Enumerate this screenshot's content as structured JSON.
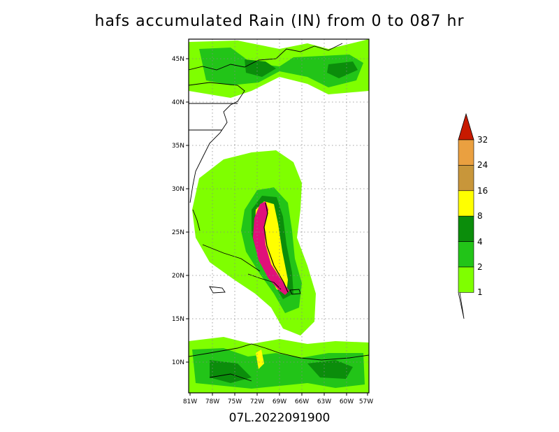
{
  "title": "hafs accumulated Rain (IN) from 0 to 087 hr",
  "footer": "07L.2022091900",
  "map": {
    "lon_labels": [
      "81W",
      "78W",
      "75W",
      "72W",
      "69W",
      "66W",
      "63W",
      "60W",
      "57W"
    ],
    "lat_labels": [
      "45N",
      "40N",
      "35N",
      "30N",
      "25N",
      "20N",
      "15N",
      "10N"
    ],
    "grid": "dotted"
  },
  "colorbar": {
    "levels": [
      "1",
      "2",
      "4",
      "8",
      "16",
      "24",
      "32"
    ],
    "colors": [
      "#7fff00",
      "#22c418",
      "#0b8d0b",
      "#ffff00",
      "#c8963a",
      "#eaa040",
      "#c81a00"
    ]
  },
  "palette": {
    "rain_light": "#7fff00",
    "rain_mid": "#22c418",
    "rain_dark": "#0b8d0b",
    "rain_yellow": "#ffff00",
    "track": "#e0107a"
  }
}
